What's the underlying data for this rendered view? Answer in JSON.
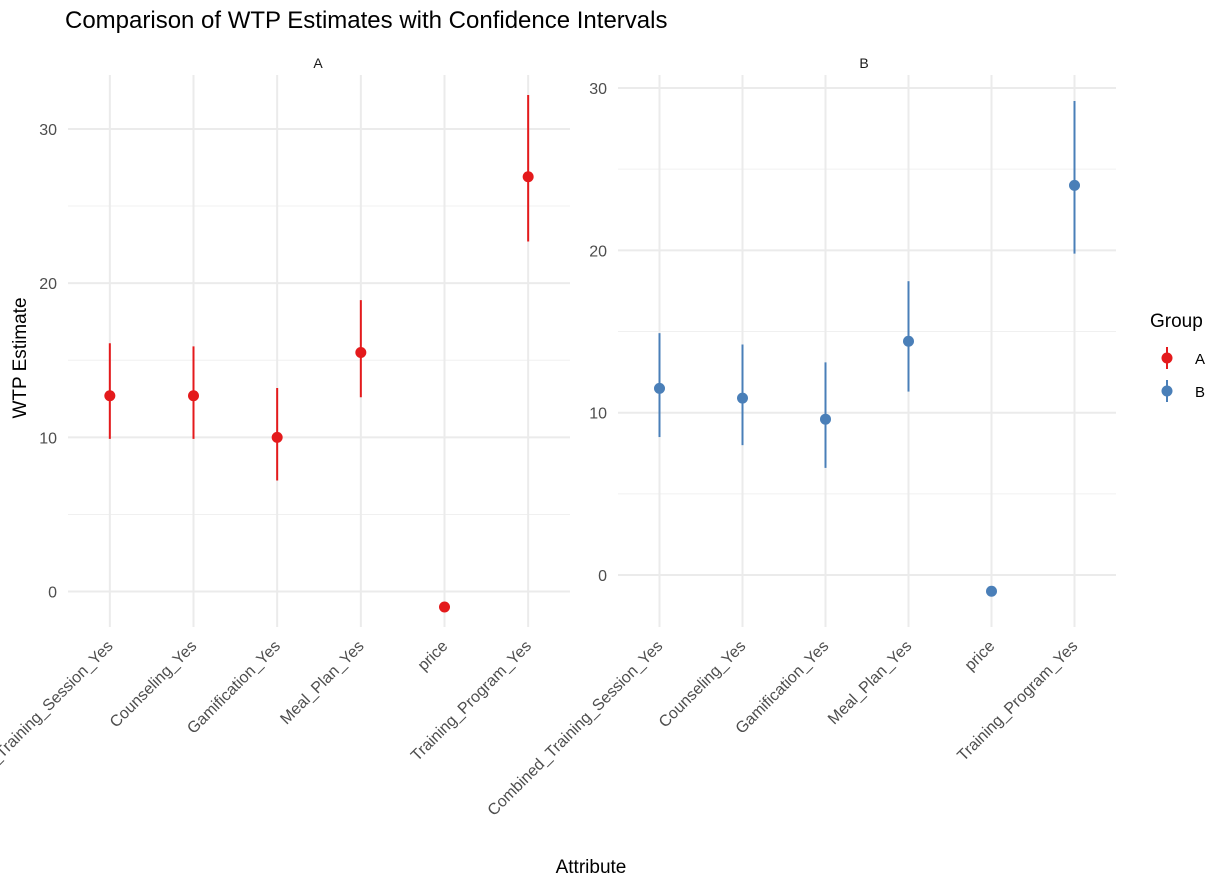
{
  "chart_data": {
    "type": "pointrange",
    "title": "Comparison of WTP Estimates with Confidence Intervals",
    "xlabel": "Attribute",
    "ylabel": "WTP Estimate",
    "categories": [
      "Combined_Training_Session_Yes",
      "Counseling_Yes",
      "Gamification_Yes",
      "Meal_Plan_Yes",
      "price",
      "Training_Program_Yes"
    ],
    "legend": {
      "title": "Group",
      "position": "right",
      "entries": [
        {
          "label": "A",
          "color": "#e41a1c"
        },
        {
          "label": "B",
          "color": "#4a7fb8"
        }
      ]
    },
    "grid": true,
    "panels": [
      {
        "strip": "A",
        "group": "A",
        "color": "#e41a1c",
        "ylim": [
          -2.3,
          33.5
        ],
        "yticks": [
          0,
          10,
          20,
          30
        ],
        "estimates": [
          12.7,
          12.7,
          10.0,
          15.5,
          -1.0,
          26.9
        ],
        "lower": [
          9.9,
          9.9,
          7.2,
          12.6,
          -1.0,
          22.7
        ],
        "upper": [
          16.1,
          15.9,
          13.2,
          18.9,
          -1.0,
          32.2
        ]
      },
      {
        "strip": "B",
        "group": "B",
        "color": "#4a7fb8",
        "ylim": [
          -3.2,
          30.8
        ],
        "yticks": [
          0,
          10,
          20,
          30
        ],
        "estimates": [
          11.5,
          10.9,
          9.6,
          14.4,
          -1.0,
          24.0
        ],
        "lower": [
          8.5,
          8.0,
          6.6,
          11.3,
          -1.0,
          19.8
        ],
        "upper": [
          14.9,
          14.2,
          13.1,
          18.1,
          -1.0,
          29.2
        ]
      }
    ]
  }
}
